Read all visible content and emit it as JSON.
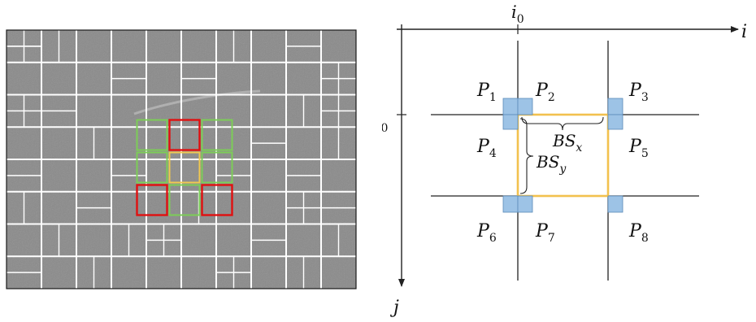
{
  "left_panel": {
    "kind": "video-frame-block-partition",
    "colors": {
      "frame_bg": "#8a8a8a",
      "frame_border": "#1a1a1a",
      "grid": "#ffffff",
      "current_block": "#f0c850",
      "neighbor_green": "#7ccd57",
      "neighbor_red": "#e01010"
    }
  },
  "right_panel": {
    "axis_i": "i",
    "axis_j": "j",
    "tick_i0": "i",
    "tick_i0_sub": "0",
    "tick_j0": "j",
    "tick_j0_sub": "0",
    "corner_labels": [
      {
        "id": "P1",
        "main": "P",
        "sub": "1"
      },
      {
        "id": "P2",
        "main": "P",
        "sub": "2"
      },
      {
        "id": "P3",
        "main": "P",
        "sub": "3"
      },
      {
        "id": "P4",
        "main": "P",
        "sub": "4"
      },
      {
        "id": "P5",
        "main": "P",
        "sub": "5"
      },
      {
        "id": "P6",
        "main": "P",
        "sub": "6"
      },
      {
        "id": "P7",
        "main": "P",
        "sub": "7"
      },
      {
        "id": "P8",
        "main": "P",
        "sub": "8"
      }
    ],
    "bs_x": {
      "main": "BS",
      "sub": "x"
    },
    "bs_y": {
      "main": "BS",
      "sub": "y"
    },
    "colors": {
      "corner_square": "#9dc3e6",
      "corner_square_border": "#5b8ab8",
      "block_outline": "#f2c14e",
      "lines": "#222222"
    }
  }
}
